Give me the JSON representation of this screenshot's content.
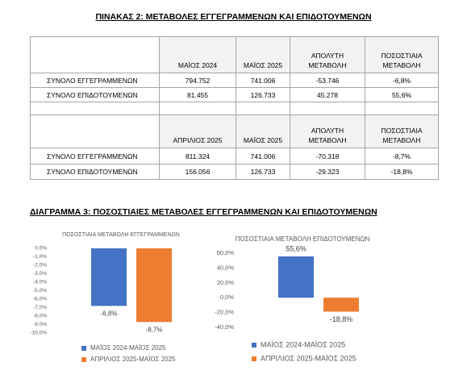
{
  "header": {
    "title": "ΠΙΝΑΚΑΣ 2: ΜΕΤΑΒΟΛΕΣ ΕΓΓΕΓΡΑΜΜΕΝΩΝ ΚΑΙ ΕΠΙΔΟΤΟΥΜΕΝΩΝ"
  },
  "table": {
    "blocks": [
      {
        "header": [
          "ΜΑΪΟΣ 2024",
          "ΜΑΪΟΣ 2025",
          "ΑΠΟΛΥΤΗ\nΜΕΤΑΒΟΛΗ",
          "ΠΟΣΟΣΤΙΑΙΑ\nΜΕΤΑΒΟΛΗ"
        ],
        "rows": [
          [
            "ΣΥΝΟΛΟ ΕΓΓΕΓΡΑΜΜΕΝΩΝ",
            "794.752",
            "741.006",
            "-53.746",
            "-6,8%"
          ],
          [
            "ΣΥΝΟΛΟ ΕΠΙΔΟΤΟΥΜΕΝΩΝ",
            "81.455",
            "126.733",
            "45.278",
            "55,6%"
          ]
        ]
      },
      {
        "header": [
          "ΑΠΡΙΛΙΟΣ 2025",
          "ΜΑΪΟΣ 2025",
          "ΑΠΟΛΥΤΗ\nΜΕΤΑΒΟΛΗ",
          "ΠΟΣΟΣΤΙΑΙΑ\nΜΕΤΑΒΟΛΗ"
        ],
        "rows": [
          [
            "ΣΥΝΟΛΟ ΕΓΓΕΓΡΑΜΜΕΝΩΝ",
            "811.324",
            "741.006",
            "-70.318",
            "-8,7%"
          ],
          [
            "ΣΥΝΟΛΟ ΕΠΙΔΟΤΟΥΜΕΝΩΝ",
            "156.056",
            "126.733",
            "-29.323",
            "-18,8%"
          ]
        ]
      }
    ]
  },
  "section": {
    "title": "ΔΙΑΓΡΑΜΜΑ 3: ΠΟΣΟΣΤΙΑΙΕΣ ΜΕΤΑΒΟΛΕΣ ΕΓΓΕΓΡΑΜΜΕΝΩΝ ΚΑΙ ΕΠΙΔΟΤΟΥΜΕΝΩΝ"
  },
  "chart_data": [
    {
      "type": "bar",
      "title": "ΠΟΣΟΣΤΙΑΙΑ ΜΕΤΑΒΟΛΗ ΕΓΓΕΓΡΑΜΜΕΝΩΝ",
      "categories": [
        null
      ],
      "series": [
        {
          "name": "ΜΑΪΟΣ 2024-ΜΑΪΟΣ 2025",
          "color": "#4472c4",
          "values": [
            -6.8
          ],
          "value_labels": [
            "-6,8%"
          ]
        },
        {
          "name": "ΑΠΡΙΛΙΟΣ 2025-ΜΑΪΟΣ 2025",
          "color": "#ed7d31",
          "values": [
            -8.7
          ],
          "value_labels": [
            "-8,7%"
          ]
        }
      ],
      "ylim": [
        -10,
        0
      ],
      "yticks": [
        {
          "value": 0,
          "label": "0,0%"
        },
        {
          "value": -1,
          "label": "-1,0%"
        },
        {
          "value": -2,
          "label": "-2,0%"
        },
        {
          "value": -3,
          "label": "-3,0%"
        },
        {
          "value": -4,
          "label": "-4,0%"
        },
        {
          "value": -5,
          "label": "-5,0%"
        },
        {
          "value": -6,
          "label": "-6,0%"
        },
        {
          "value": -7,
          "label": "-7,0%"
        },
        {
          "value": -8,
          "label": "-8,0%"
        },
        {
          "value": -9,
          "label": "-9,0%"
        },
        {
          "value": -10,
          "label": "-10,0%"
        }
      ],
      "legend": "bottom"
    },
    {
      "type": "bar",
      "title": "ΠΟΣΟΣΤΙΑΙΑ ΜΕΤΑΒΟΛΗ ΕΠΙΔΟΤΟΥΜΕΝΩΝ",
      "categories": [
        null
      ],
      "series": [
        {
          "name": "ΜΑΪΟΣ 2024-ΜΑΪΟΣ 2025",
          "color": "#4472c4",
          "values": [
            55.6
          ],
          "value_labels": [
            "55,6%"
          ]
        },
        {
          "name": "ΑΠΡΙΛΙΟΣ 2025-ΜΑΪΟΣ 2025",
          "color": "#ed7d31",
          "values": [
            -18.8
          ],
          "value_labels": [
            "-18,8%"
          ]
        }
      ],
      "ylim": [
        -40,
        60
      ],
      "yticks": [
        {
          "value": 60,
          "label": "60,0%"
        },
        {
          "value": 40,
          "label": "40,0%"
        },
        {
          "value": 20,
          "label": "20,0%"
        },
        {
          "value": 0,
          "label": "0,0%"
        },
        {
          "value": -20,
          "label": "-20,0%"
        },
        {
          "value": -40,
          "label": "-40,0%"
        }
      ],
      "legend": "bottom"
    }
  ]
}
